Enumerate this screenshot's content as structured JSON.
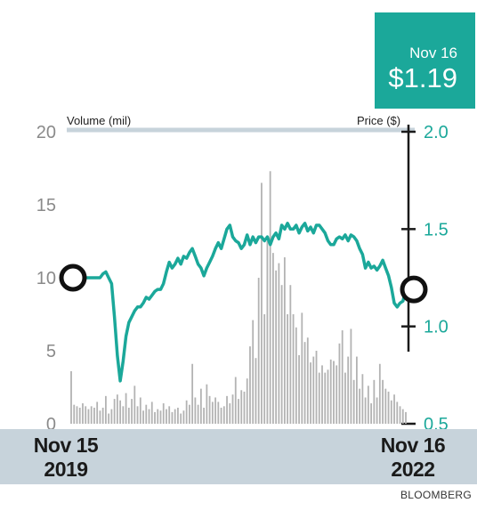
{
  "callout": {
    "date": "Nov 16",
    "price": "$1.19"
  },
  "dates": {
    "start_date": "Nov 15",
    "start_year": "2019",
    "end_date": "Nov 16",
    "end_year": "2022"
  },
  "source": "BLOOMBERG",
  "colors": {
    "price_line": "#1ba89a",
    "volume_bars": "#b3b3b3",
    "callout_bg": "#1ba89a",
    "band": "#c7d3db"
  },
  "chart_data": {
    "type": "line",
    "left_axis": {
      "label": "Volume (mil)",
      "range": [
        0,
        20
      ],
      "ticks": [
        0,
        5,
        10,
        15,
        20
      ]
    },
    "right_axis": {
      "label": "Price ($)",
      "range": [
        0.5,
        2.0
      ],
      "ticks": [
        0.5,
        1.0,
        1.5,
        2.0
      ]
    },
    "x_range": [
      "Nov 15 2019",
      "Nov 16 2022"
    ],
    "price_series": {
      "values": [
        1.25,
        1.25,
        1.25,
        1.25,
        1.25,
        1.25,
        1.25,
        1.25,
        1.25,
        1.25,
        1.25,
        1.27,
        1.28,
        1.25,
        1.22,
        1.05,
        0.85,
        0.72,
        0.82,
        0.95,
        1.02,
        1.05,
        1.08,
        1.1,
        1.1,
        1.12,
        1.15,
        1.14,
        1.16,
        1.18,
        1.19,
        1.19,
        1.22,
        1.28,
        1.33,
        1.3,
        1.32,
        1.35,
        1.32,
        1.36,
        1.35,
        1.38,
        1.4,
        1.36,
        1.32,
        1.3,
        1.26,
        1.3,
        1.33,
        1.36,
        1.4,
        1.43,
        1.4,
        1.45,
        1.5,
        1.52,
        1.46,
        1.44,
        1.43,
        1.4,
        1.42,
        1.47,
        1.42,
        1.46,
        1.43,
        1.46,
        1.46,
        1.44,
        1.46,
        1.42,
        1.46,
        1.48,
        1.45,
        1.52,
        1.5,
        1.53,
        1.5,
        1.5,
        1.52,
        1.48,
        1.51,
        1.53,
        1.49,
        1.51,
        1.48,
        1.52,
        1.52,
        1.5,
        1.48,
        1.44,
        1.42,
        1.42,
        1.45,
        1.46,
        1.45,
        1.47,
        1.44,
        1.47,
        1.46,
        1.44,
        1.4,
        1.37,
        1.3,
        1.33,
        1.3,
        1.31,
        1.29,
        1.31,
        1.34,
        1.3,
        1.26,
        1.2,
        1.12,
        1.1,
        1.12,
        1.13,
        1.19
      ]
    },
    "volume_series": {
      "values": [
        3.6,
        1.3,
        1.2,
        1.1,
        1.4,
        1.2,
        1.0,
        1.2,
        1.1,
        1.5,
        0.9,
        1.1,
        1.9,
        0.7,
        1.0,
        1.7,
        2.0,
        1.6,
        1.2,
        2.1,
        1.1,
        1.7,
        2.6,
        1.2,
        1.8,
        0.9,
        1.3,
        1.0,
        1.5,
        0.8,
        1.0,
        0.9,
        1.4,
        1.0,
        1.2,
        0.8,
        1.0,
        1.1,
        0.7,
        0.9,
        1.6,
        1.3,
        4.1,
        1.8,
        1.3,
        2.4,
        1.1,
        2.7,
        1.9,
        1.5,
        1.8,
        1.5,
        1.1,
        1.2,
        1.9,
        1.4,
        2.0,
        3.2,
        1.7,
        2.3,
        2.2,
        3.1,
        5.3,
        7.1,
        4.5,
        10.0,
        16.5,
        7.5,
        12.5,
        17.3,
        11.7,
        10.5,
        11.0,
        9.5,
        11.4,
        7.5,
        9.5,
        7.5,
        6.6,
        4.7,
        7.6,
        5.6,
        5.9,
        4.2,
        4.6,
        5.0,
        3.5,
        4.0,
        3.5,
        3.7,
        4.4,
        4.3,
        4.0,
        5.5,
        6.4,
        3.5,
        4.6,
        6.5,
        3.0,
        4.6,
        2.4,
        3.4,
        1.8,
        2.6,
        1.4,
        3.0,
        1.8,
        4.1,
        3.0,
        2.4,
        2.2,
        1.6,
        2.0,
        1.5,
        1.2,
        1.0,
        0.8
      ]
    },
    "markers": [
      {
        "date": "Nov 15 2019",
        "price": 1.25
      },
      {
        "date": "Nov 16 2022",
        "price": 1.19
      }
    ]
  }
}
